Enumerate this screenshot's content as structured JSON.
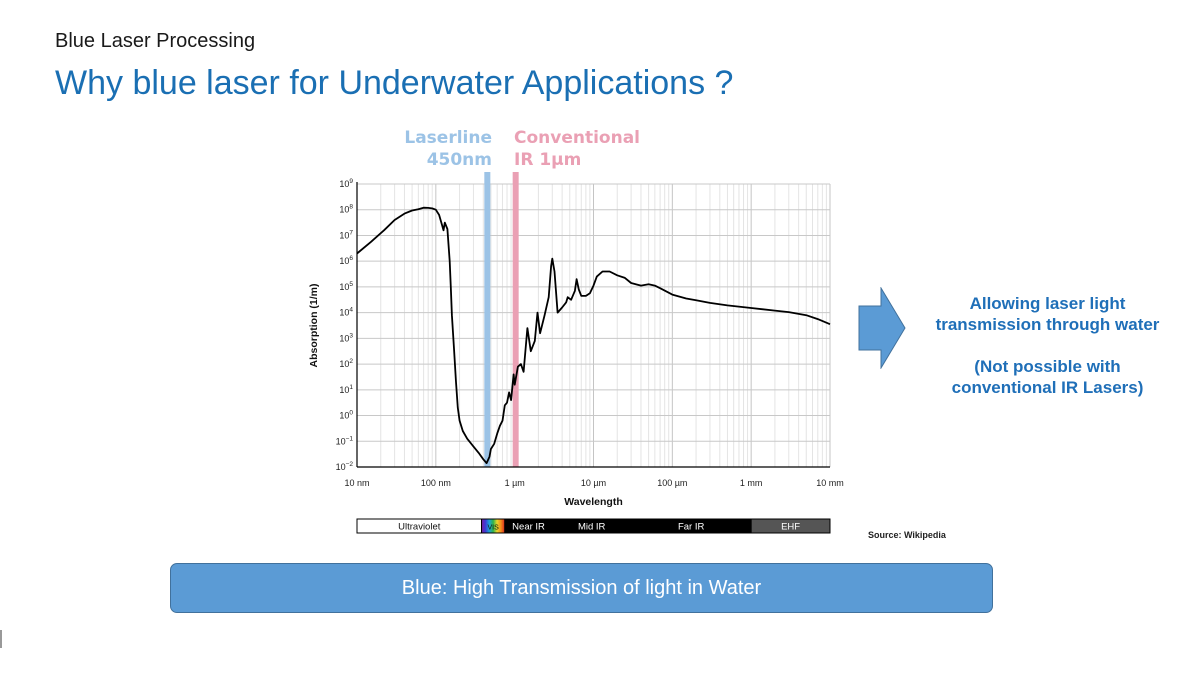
{
  "header": {
    "subtitle": "Blue Laser Processing",
    "title": "Why blue laser for Underwater Applications ?"
  },
  "markers": {
    "blue": {
      "line1": "Laserline",
      "line2": "450nm",
      "wavelength_m": 4.5e-07,
      "color": "#9cc3e6"
    },
    "ir": {
      "line1": "Conventional",
      "line2": "IR 1µm",
      "wavelength_m": 1e-06,
      "color": "#eaa0b4"
    }
  },
  "callout": {
    "lines": [
      "Allowing laser light",
      "transmission through water"
    ],
    "note_lines": [
      "(Not possible with",
      "conventional IR Lasers)"
    ]
  },
  "source": "Source: Wikipedia",
  "banner": "Blue: High Transmission of light in Water",
  "colors": {
    "title": "#1a6fb3",
    "callout": "#1f6fb8",
    "arrow": "#5b9bd5",
    "banner": "#5b9bd5",
    "curve": "#000000"
  },
  "chart_data": {
    "type": "line",
    "xlabel": "Wavelength",
    "ylabel": "Absorption (1/m)",
    "xscale": "log",
    "yscale": "log",
    "xlim_m": [
      1e-08,
      0.01
    ],
    "ylim_exp": [
      -2,
      9
    ],
    "grid": true,
    "x_ticks": [
      {
        "value": 1e-08,
        "label": "10 nm"
      },
      {
        "value": 1e-07,
        "label": "100 nm"
      },
      {
        "value": 1e-06,
        "label": "1 µm"
      },
      {
        "value": 1e-05,
        "label": "10 µm"
      },
      {
        "value": 0.0001,
        "label": "100 µm"
      },
      {
        "value": 0.001,
        "label": "1 mm"
      },
      {
        "value": 0.01,
        "label": "10 mm"
      }
    ],
    "y_ticks": [
      -2,
      -1,
      0,
      1,
      2,
      3,
      4,
      5,
      6,
      7,
      8,
      9
    ],
    "band_bar": [
      {
        "label": "Ultraviolet",
        "from": 1e-08,
        "to": 3.8e-07,
        "style": "light"
      },
      {
        "label": "VIS",
        "from": 3.8e-07,
        "to": 7.5e-07,
        "style": "spectrum"
      },
      {
        "label": "Near IR",
        "from": 7.5e-07,
        "to": 3e-06,
        "style": "dark"
      },
      {
        "label": "Mid IR",
        "from": 3e-06,
        "to": 3e-05,
        "style": "dark"
      },
      {
        "label": "Far IR",
        "from": 3e-05,
        "to": 0.001,
        "style": "dark"
      },
      {
        "label": "EHF",
        "from": 0.001,
        "to": 0.01,
        "style": "gray"
      }
    ],
    "series": [
      {
        "color": "#000000",
        "points": [
          [
            1e-08,
            6.3
          ],
          [
            1.5e-08,
            6.75
          ],
          [
            2.2e-08,
            7.2
          ],
          [
            3e-08,
            7.6
          ],
          [
            4e-08,
            7.85
          ],
          [
            5e-08,
            7.97
          ],
          [
            6e-08,
            8.02
          ],
          [
            7e-08,
            8.08
          ],
          [
            8e-08,
            8.07
          ],
          [
            9e-08,
            8.05
          ],
          [
            1e-07,
            8.0
          ],
          [
            1.1e-07,
            7.8
          ],
          [
            1.2e-07,
            7.4
          ],
          [
            1.25e-07,
            7.2
          ],
          [
            1.3e-07,
            7.5
          ],
          [
            1.4e-07,
            7.25
          ],
          [
            1.5e-07,
            6.0
          ],
          [
            1.55e-07,
            5.0
          ],
          [
            1.6e-07,
            3.9
          ],
          [
            1.7e-07,
            2.6
          ],
          [
            1.8e-07,
            1.3
          ],
          [
            1.9e-07,
            0.3
          ],
          [
            2e-07,
            -0.2
          ],
          [
            2.2e-07,
            -0.6
          ],
          [
            2.5e-07,
            -0.9
          ],
          [
            3e-07,
            -1.2
          ],
          [
            3.5e-07,
            -1.45
          ],
          [
            4e-07,
            -1.7
          ],
          [
            4.4e-07,
            -1.85
          ],
          [
            4.8e-07,
            -1.6
          ],
          [
            5e-07,
            -1.3
          ],
          [
            5.5e-07,
            -1.1
          ],
          [
            6e-07,
            -0.7
          ],
          [
            6.5e-07,
            -0.4
          ],
          [
            7e-07,
            -0.2
          ],
          [
            7.5e-07,
            0.4
          ],
          [
            8e-07,
            0.5
          ],
          [
            8.5e-07,
            0.9
          ],
          [
            9e-07,
            0.6
          ],
          [
            9.7e-07,
            1.6
          ],
          [
            1e-06,
            1.2
          ],
          [
            1.1e-06,
            1.9
          ],
          [
            1.2e-06,
            2.0
          ],
          [
            1.3e-06,
            1.7
          ],
          [
            1.45e-06,
            3.4
          ],
          [
            1.6e-06,
            2.5
          ],
          [
            1.8e-06,
            2.9
          ],
          [
            1.95e-06,
            4.0
          ],
          [
            2.1e-06,
            3.2
          ],
          [
            2.4e-06,
            3.9
          ],
          [
            2.7e-06,
            4.6
          ],
          [
            2.9e-06,
            5.8
          ],
          [
            3e-06,
            6.1
          ],
          [
            3.2e-06,
            5.6
          ],
          [
            3.5e-06,
            4.0
          ],
          [
            4e-06,
            4.2
          ],
          [
            4.5e-06,
            4.4
          ],
          [
            4.7e-06,
            4.6
          ],
          [
            5.2e-06,
            4.5
          ],
          [
            5.8e-06,
            4.85
          ],
          [
            6.1e-06,
            5.3
          ],
          [
            6.5e-06,
            4.9
          ],
          [
            7e-06,
            4.65
          ],
          [
            8e-06,
            4.65
          ],
          [
            9e-06,
            4.75
          ],
          [
            1e-05,
            5.05
          ],
          [
            1.1e-05,
            5.4
          ],
          [
            1.3e-05,
            5.6
          ],
          [
            1.6e-05,
            5.6
          ],
          [
            2e-05,
            5.45
          ],
          [
            2.5e-05,
            5.35
          ],
          [
            3e-05,
            5.15
          ],
          [
            4e-05,
            5.05
          ],
          [
            5e-05,
            5.1
          ],
          [
            6e-05,
            5.05
          ],
          [
            7e-05,
            4.95
          ],
          [
            0.0001,
            4.7
          ],
          [
            0.00015,
            4.55
          ],
          [
            0.0002,
            4.48
          ],
          [
            0.0003,
            4.38
          ],
          [
            0.0005,
            4.28
          ],
          [
            0.001,
            4.18
          ],
          [
            0.002,
            4.08
          ],
          [
            0.003,
            4.02
          ],
          [
            0.005,
            3.9
          ],
          [
            0.007,
            3.75
          ],
          [
            0.01,
            3.55
          ]
        ]
      }
    ]
  }
}
